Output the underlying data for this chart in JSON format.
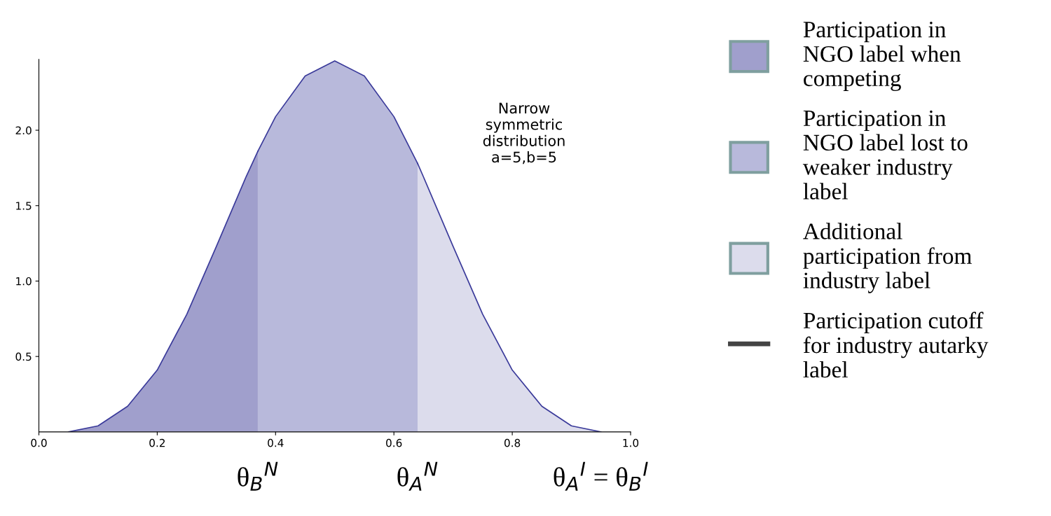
{
  "chart_data": {
    "type": "area",
    "series": [
      {
        "name": "Participation in\nNGO label when\ncompeting",
        "color": "#a09fcc",
        "x": [
          0.05,
          0.1,
          0.15,
          0.2,
          0.25,
          0.3,
          0.35,
          0.37
        ],
        "values": [
          0.0,
          0.04,
          0.17,
          0.41,
          0.78,
          1.23,
          1.69,
          1.86
        ]
      },
      {
        "name": "Participation in\nNGO label lost to\nweaker industry\nlabel",
        "color": "#b8b9db",
        "x": [
          0.37,
          0.4,
          0.45,
          0.5,
          0.55,
          0.6,
          0.64
        ],
        "values": [
          1.86,
          2.09,
          2.36,
          2.46,
          2.36,
          2.09,
          1.78
        ]
      },
      {
        "name": "Additional\nparticipation from\nindustry label",
        "color": "#dcdcec",
        "x": [
          0.64,
          0.65,
          0.7,
          0.75,
          0.8,
          0.85,
          0.9,
          0.95
        ],
        "values": [
          1.78,
          1.69,
          1.23,
          0.78,
          0.41,
          0.17,
          0.04,
          0.0
        ]
      },
      {
        "name": "Participation cutoff\nfor industry autarky\nlabel",
        "type": "line",
        "color": "#444444"
      }
    ],
    "xlim": [
      0,
      1
    ],
    "xticks": [
      {
        "value": 0,
        "label": "0.0"
      },
      0.2,
      0.4,
      0.6,
      0.8,
      {
        "value": 1,
        "label": "1.0"
      }
    ],
    "ylim": [
      0,
      2.47
    ],
    "yticks": [
      0.5,
      {
        "value": 1,
        "label": "1.0"
      },
      1.5,
      {
        "value": 2,
        "label": "2.0"
      }
    ],
    "legend": "right",
    "grid": false,
    "annotations": [
      "Narrow\nsymmetric\ndistribution\na=5,b=5",
      {
        "text": "θ$_{B}$$^{N}$",
        "x": 0.37,
        "y": 0
      },
      {
        "text": "θ$_{A}$$^{N}$",
        "x": 0.64,
        "y": 0
      },
      {
        "text": "θ$_{A}$$^{I}$ = θ$_{B}$$^{I}$",
        "x": 0.95,
        "y": 0
      }
    ]
  }
}
